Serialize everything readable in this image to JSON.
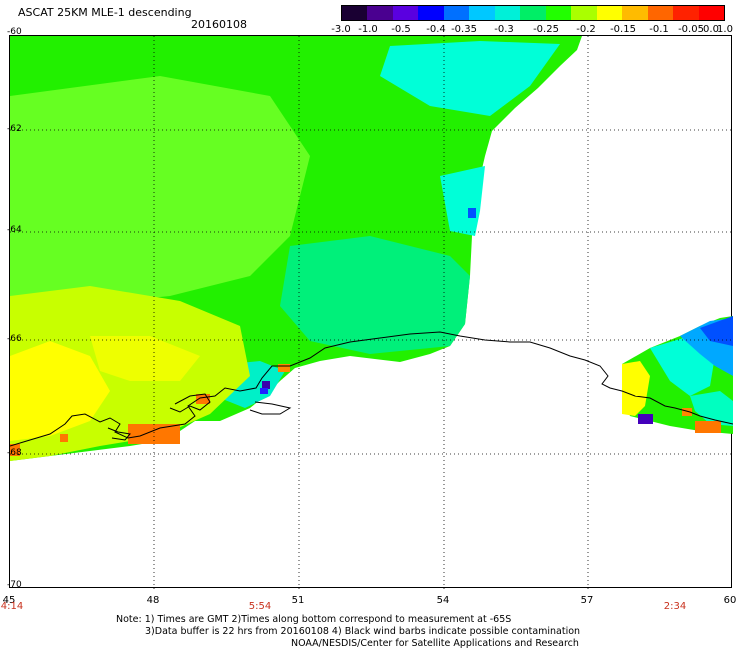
{
  "header": {
    "title": "ASCAT 25KM MLE-1 descending",
    "date": "20160108"
  },
  "colorbar": {
    "labels": [
      "-3.0",
      "-1.0",
      "-0.5",
      "-0.4",
      "-0.35",
      "-0.3",
      "-0.25",
      "-0.2",
      "-0.15",
      "-0.1",
      "-0.05",
      "0.0",
      "1.0"
    ],
    "colors": [
      "#1a0033",
      "#4a0090",
      "#5a00e0",
      "#0000ff",
      "#0070ff",
      "#00c8ff",
      "#00f0d8",
      "#00ee66",
      "#22ff00",
      "#aaff00",
      "#ffff00",
      "#ffbb00",
      "#ff6600",
      "#ff2200",
      "#ff0000"
    ]
  },
  "axes": {
    "lat_labels": [
      "-60",
      "-62",
      "-64",
      "-66",
      "-68",
      "-70"
    ],
    "lon_labels": [
      "45",
      "48",
      "51",
      "54",
      "57",
      "60"
    ],
    "time_labels": [
      "4:14",
      "5:54",
      "2:34"
    ]
  },
  "notes": {
    "line1": "Note: 1) Times are GMT 2)Times along bottom correspond to measurement at -65S",
    "line2": "3)Data buffer is 22 hrs from 20160108 4) Black wind barbs indicate possible contamination",
    "line3": "NOAA/NESDIS/Center for Satellite Applications and Research"
  },
  "map": {
    "data_colors": {
      "green": "#22f000",
      "light_green": "#66ff22",
      "cyan_green": "#00f07a",
      "cyan": "#00ffd8",
      "yellow_green": "#c8ff00",
      "yellow": "#ffff00",
      "orange": "#ff7700",
      "blue": "#0050ff",
      "light_blue": "#00a8ff",
      "purple": "#4400bb"
    },
    "coastline_color": "#000000",
    "grid_style": "dotted"
  }
}
